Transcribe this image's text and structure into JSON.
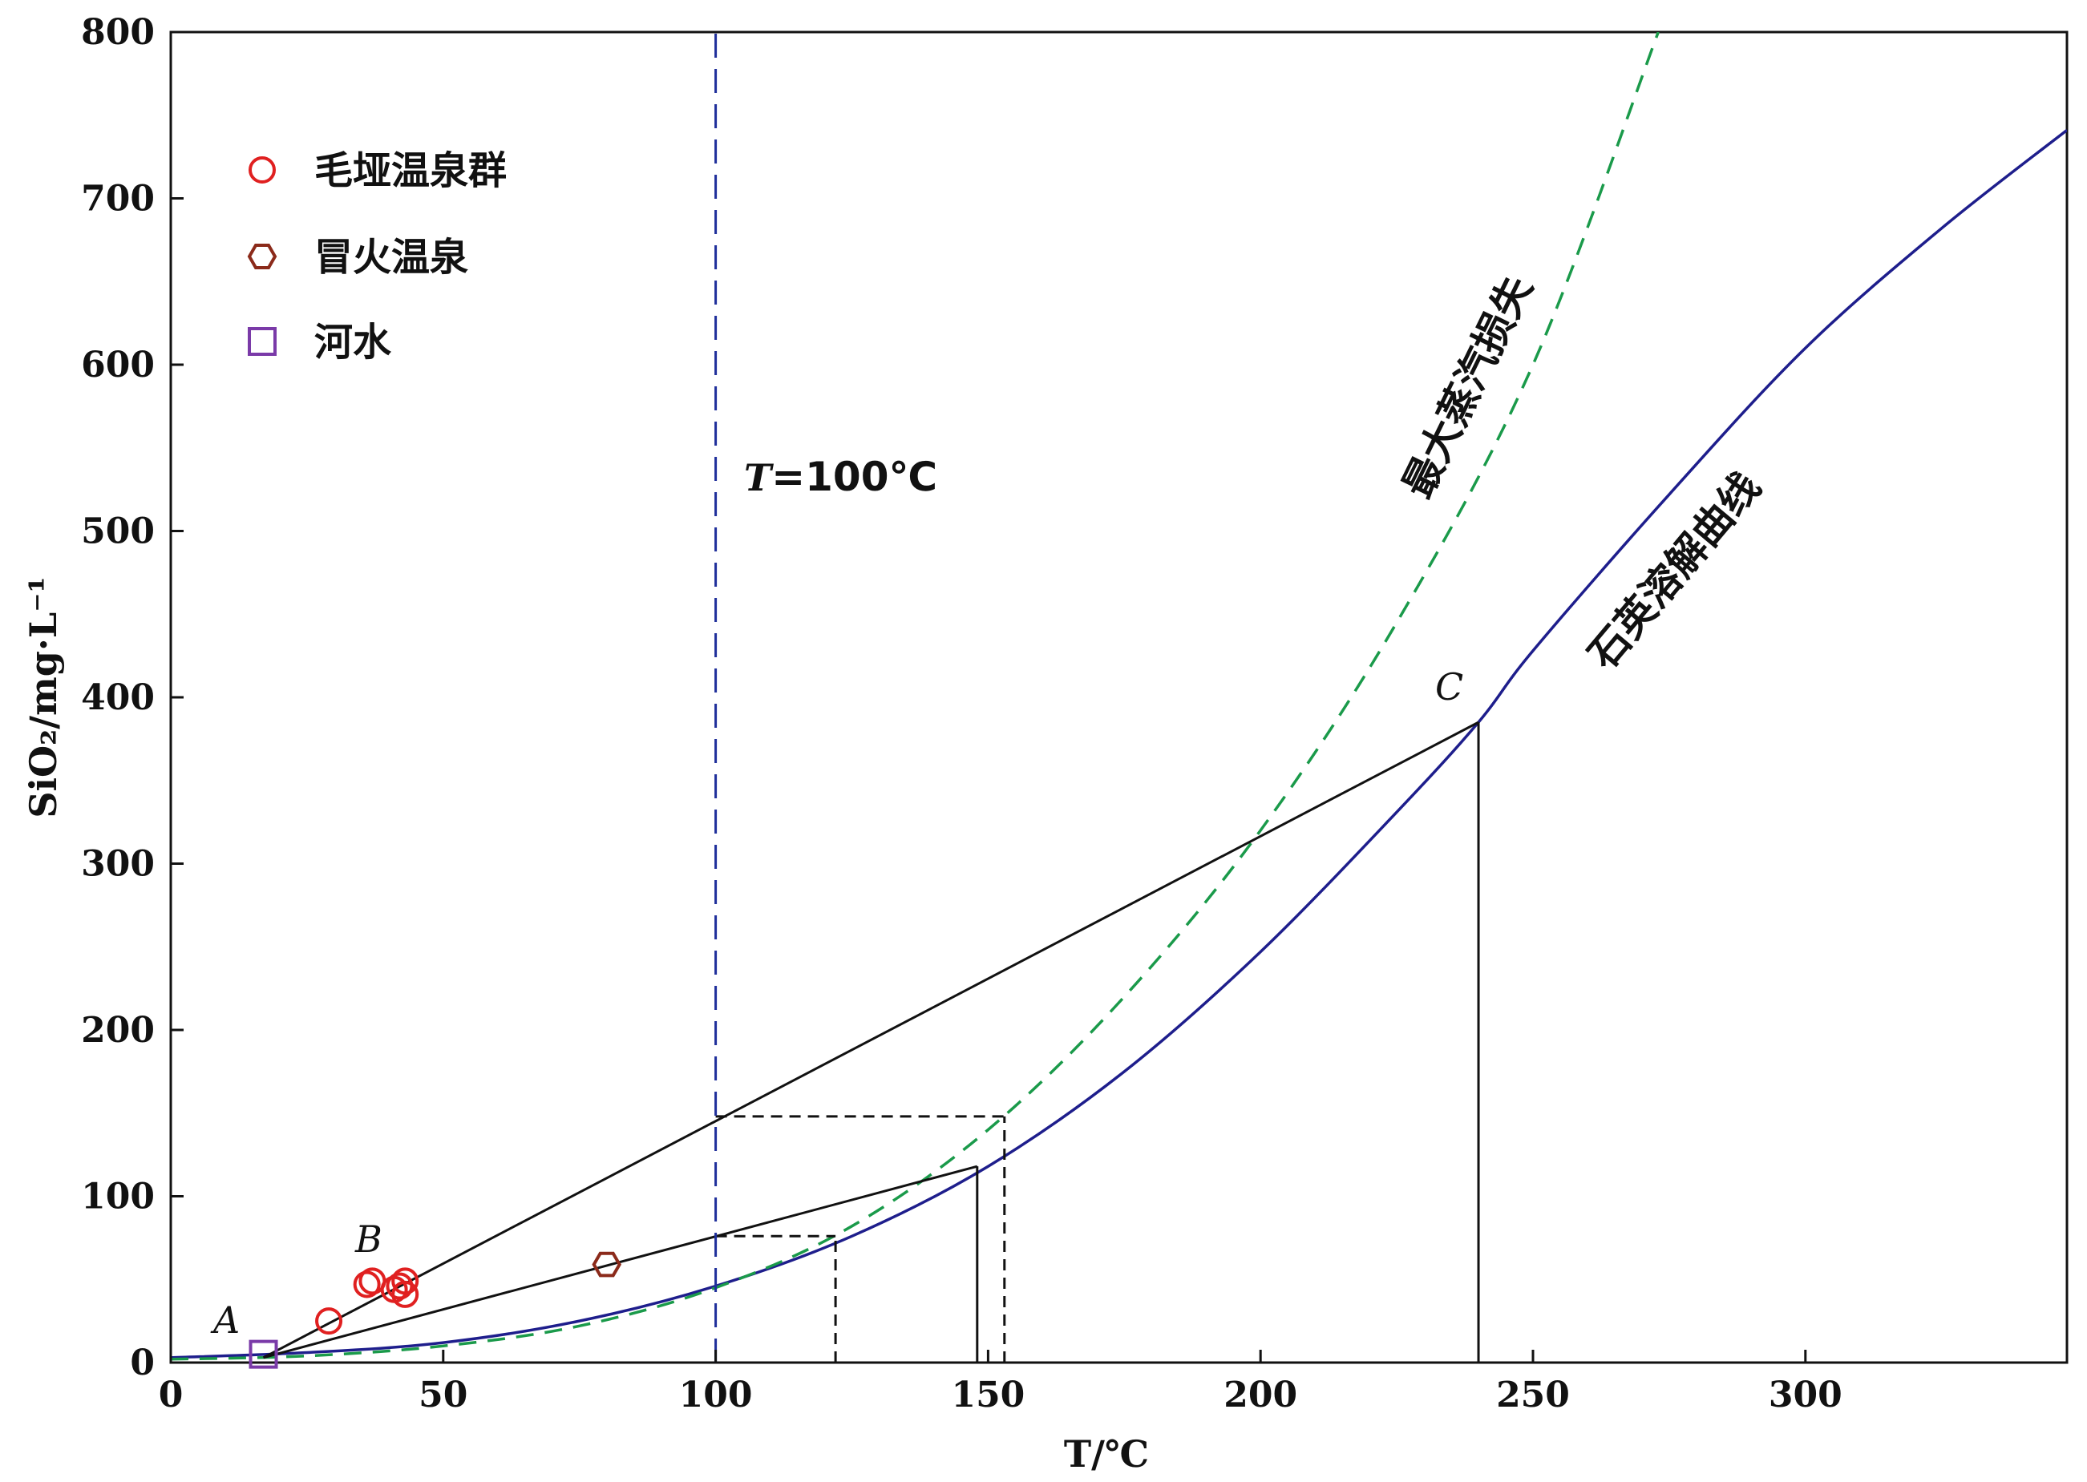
{
  "chart_data": {
    "type": "scatter",
    "xlabel": "T/℃",
    "ylabel": "SiO₂/mg·L⁻¹",
    "xlim": [
      0,
      348
    ],
    "ylim": [
      0,
      800
    ],
    "x_ticks": [
      "0",
      "50",
      "100",
      "150",
      "200",
      "250",
      "300"
    ],
    "y_ticks": [
      "0",
      "100",
      "200",
      "300",
      "400",
      "500",
      "600",
      "700",
      "800"
    ],
    "legend_position": "top-left",
    "legend": [
      {
        "label": "毛垭温泉群",
        "marker": "circle",
        "color": "#e02020"
      },
      {
        "label": "冒火温泉",
        "marker": "hexagon",
        "color": "#8b2a1a"
      },
      {
        "label": "河水",
        "marker": "square",
        "color": "#7a3aa8"
      }
    ],
    "series": [
      {
        "name": "毛垭温泉群",
        "marker": "circle",
        "color": "#e02020",
        "points": [
          [
            29,
            25
          ],
          [
            36,
            47
          ],
          [
            37,
            49
          ],
          [
            41,
            44
          ],
          [
            42,
            46
          ],
          [
            43,
            41
          ],
          [
            43,
            49
          ]
        ]
      },
      {
        "name": "冒火温泉",
        "marker": "hexagon",
        "color": "#8b2a1a",
        "points": [
          [
            80,
            59
          ]
        ]
      },
      {
        "name": "河水",
        "marker": "square",
        "color": "#7a3aa8",
        "points": [
          [
            17,
            5
          ]
        ]
      }
    ],
    "curves": {
      "quartz_solubility": {
        "label": "石英溶解曲线",
        "color": "#1e1e8c",
        "style": "solid",
        "points": [
          [
            0,
            3
          ],
          [
            25,
            6
          ],
          [
            50,
            12
          ],
          [
            75,
            25
          ],
          [
            100,
            46
          ],
          [
            125,
            76
          ],
          [
            150,
            118
          ],
          [
            175,
            175
          ],
          [
            200,
            247
          ],
          [
            225,
            331
          ],
          [
            240,
            385
          ],
          [
            250,
            428
          ],
          [
            275,
            522
          ],
          [
            300,
            610
          ],
          [
            325,
            682
          ],
          [
            348,
            741
          ]
        ]
      },
      "max_steam_loss": {
        "label": "最大蒸汽损失",
        "color": "#1a9a4a",
        "style": "dashed",
        "points": [
          [
            0,
            2
          ],
          [
            25,
            4
          ],
          [
            50,
            10
          ],
          [
            75,
            22
          ],
          [
            100,
            45
          ],
          [
            125,
            82
          ],
          [
            150,
            140
          ],
          [
            175,
            220
          ],
          [
            200,
            320
          ],
          [
            225,
            445
          ],
          [
            250,
            600
          ],
          [
            273,
            800
          ]
        ]
      }
    },
    "lines": [
      {
        "from": [
          17,
          3
        ],
        "to": [
          240,
          385
        ],
        "color": "#111",
        "style": "solid"
      },
      {
        "from": [
          17,
          3
        ],
        "to": [
          148,
          118
        ],
        "color": "#111",
        "style": "solid"
      },
      {
        "from": [
          148,
          0
        ],
        "to": [
          148,
          118
        ],
        "color": "#111",
        "style": "solid"
      },
      {
        "from": [
          240,
          0
        ],
        "to": [
          240,
          385
        ],
        "color": "#111",
        "style": "solid"
      },
      {
        "from": [
          100,
          148
        ],
        "to": [
          153,
          148
        ],
        "color": "#111",
        "style": "dashed"
      },
      {
        "from": [
          153,
          0
        ],
        "to": [
          153,
          148
        ],
        "color": "#111",
        "style": "dashed"
      },
      {
        "from": [
          100,
          76
        ],
        "to": [
          122,
          76
        ],
        "color": "#111",
        "style": "dashed"
      },
      {
        "from": [
          122,
          0
        ],
        "to": [
          122,
          76
        ],
        "color": "#111",
        "style": "dashed"
      },
      {
        "from": [
          100,
          0
        ],
        "to": [
          100,
          800
        ],
        "color": "#1e2e9a",
        "style": "dashed"
      }
    ],
    "annotations": {
      "t100_italic": "T",
      "t100_rest": "=100℃",
      "point_a": "A",
      "point_b": "B",
      "point_c": "C",
      "steam_loss_label": "最大蒸汽损失",
      "quartz_label": "石英溶解曲线"
    }
  }
}
